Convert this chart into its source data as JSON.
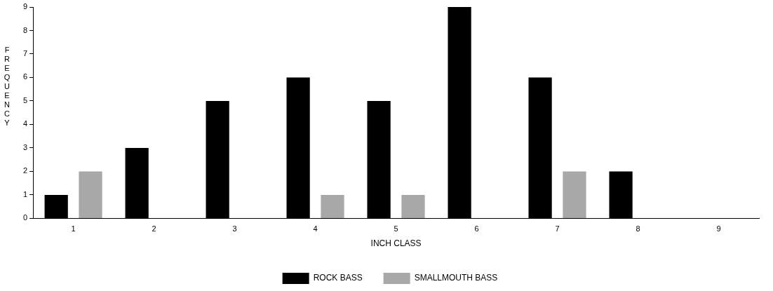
{
  "chart_data": {
    "type": "bar",
    "xlabel": "INCH CLASS",
    "ylabel": "FREQUENCY",
    "categories": [
      "1",
      "2",
      "3",
      "4",
      "5",
      "6",
      "7",
      "8",
      "9"
    ],
    "series": [
      {
        "name": "ROCK BASS",
        "color": "#000000",
        "values": [
          1,
          3,
          5,
          6,
          5,
          9,
          6,
          2,
          0
        ]
      },
      {
        "name": "SMALLMOUTH BASS",
        "color": "#a8a8a8",
        "values": [
          2,
          0,
          0,
          1,
          1,
          0,
          2,
          0,
          0
        ]
      }
    ],
    "ylim": [
      0,
      9
    ],
    "yticks": [
      0,
      1,
      2,
      3,
      4,
      5,
      6,
      7,
      8,
      9
    ],
    "grid": false,
    "legend": "bottom"
  }
}
